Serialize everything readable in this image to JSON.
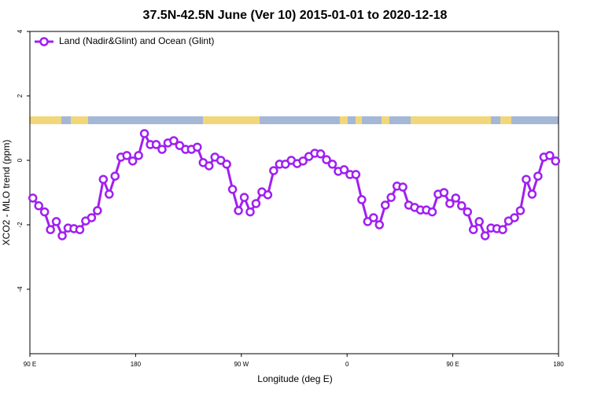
{
  "chart_data": {
    "type": "line",
    "title": "37.5N-42.5N June (Ver 10)   2015-01-01 to 2020-12-18",
    "xlabel": "Longitude (deg E)",
    "ylabel": "XCO2 - MLO trend (ppm)",
    "x": [
      92.5,
      97.5,
      102.5,
      107.5,
      112.5,
      117.5,
      122.5,
      127.5,
      132.5,
      137.5,
      142.5,
      147.5,
      152.5,
      157.5,
      162.5,
      167.5,
      172.5,
      177.5,
      182.5,
      187.5,
      192.5,
      197.5,
      202.5,
      207.5,
      212.5,
      217.5,
      222.5,
      227.5,
      232.5,
      237.5,
      242.5,
      247.5,
      252.5,
      257.5,
      262.5,
      267.5,
      272.5,
      277.5,
      282.5,
      287.5,
      292.5,
      297.5,
      302.5,
      307.5,
      312.5,
      317.5,
      322.5,
      327.5,
      332.5,
      337.5,
      342.5,
      347.5,
      352.5,
      357.5,
      362.5,
      367.5,
      372.5,
      377.5,
      382.5,
      387.5,
      392.5,
      397.5,
      402.5,
      407.5,
      412.5,
      417.5,
      422.5,
      427.5,
      432.5,
      437.5,
      442.5,
      447.5,
      452.5,
      457.5,
      462.5,
      467.5,
      472.5,
      477.5,
      482.5,
      487.5,
      492.5,
      497.5,
      502.5,
      507.5,
      512.5,
      517.5,
      522.5,
      527.5,
      532.5,
      537.5
    ],
    "series": [
      {
        "name": "Land (Nadir&Glint) and Ocean (Glint)",
        "color": "#a020f0",
        "values": [
          -1.17,
          -1.41,
          -1.6,
          -2.15,
          -1.9,
          -2.34,
          -2.1,
          -2.12,
          -2.15,
          -1.88,
          -1.78,
          -1.56,
          -0.59,
          -1.05,
          -0.49,
          0.1,
          0.15,
          -0.02,
          0.15,
          0.83,
          0.49,
          0.49,
          0.34,
          0.54,
          0.61,
          0.46,
          0.34,
          0.34,
          0.41,
          -0.07,
          -0.17,
          0.1,
          0,
          -0.12,
          -0.9,
          -1.56,
          -1.15,
          -1.6,
          -1.34,
          -0.98,
          -1.07,
          -0.32,
          -0.12,
          -0.12,
          0,
          -0.1,
          -0.02,
          0.12,
          0.22,
          0.2,
          0.02,
          -0.12,
          -0.34,
          -0.29,
          -0.44,
          -0.44,
          -1.22,
          -1.9,
          -1.78,
          -2,
          -1.39,
          -1.15,
          -0.8,
          -0.83,
          -1.39,
          -1.46,
          -1.54,
          -1.54,
          -1.6,
          -1.05,
          -1,
          -1.34,
          -1.17,
          -1.41,
          -1.6,
          -2.15,
          -1.9,
          -2.34,
          -2.1,
          -2.12,
          -2.15,
          -1.88,
          -1.78,
          -1.56,
          -0.59,
          -1.05,
          -0.49,
          0.1,
          0.15,
          -0.02
        ]
      }
    ],
    "xlim": [
      90,
      540
    ],
    "xticks": [
      {
        "value": 90,
        "label": "90 E"
      },
      180,
      {
        "value": 270,
        "label": "90 W"
      },
      {
        "value": 360,
        "label": "0"
      },
      {
        "value": 450,
        "label": "90 E"
      },
      {
        "value": 540,
        "label": "180"
      }
    ],
    "ylim": [
      -6,
      4
    ],
    "yticks": [
      -4,
      -2,
      0,
      2,
      4
    ],
    "legend": "top-left"
  }
}
